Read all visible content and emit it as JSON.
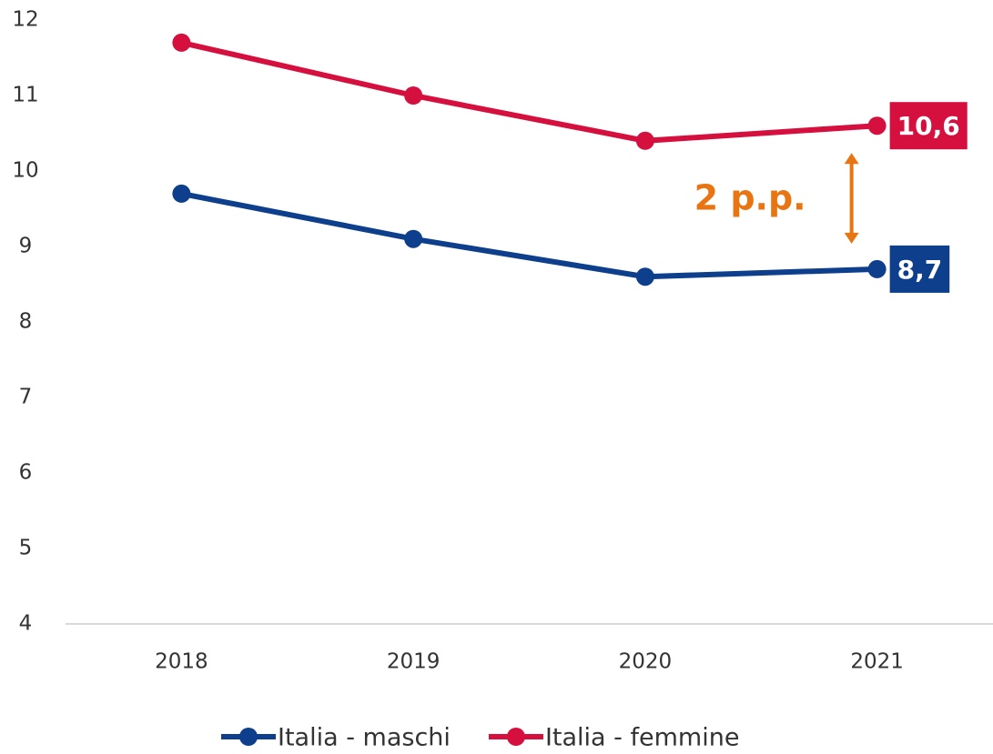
{
  "chart_data": {
    "type": "line",
    "categories": [
      "2018",
      "2019",
      "2020",
      "2021"
    ],
    "series": [
      {
        "name": "Italia - maschi",
        "color": "#0d3f8c",
        "values": [
          9.7,
          9.1,
          8.6,
          8.7
        ],
        "value_labels": [
          null,
          null,
          null,
          "8,7"
        ]
      },
      {
        "name": "Italia - femmine",
        "color": "#d5103f",
        "values": [
          11.7,
          11.0,
          10.4,
          10.6
        ],
        "value_labels": [
          null,
          null,
          null,
          "10,6"
        ]
      }
    ],
    "annotation": {
      "text": "2 p.p.",
      "color": "#e87511"
    },
    "ylim": [
      4,
      12
    ],
    "yticks": [
      4,
      5,
      6,
      7,
      8,
      9,
      10,
      11,
      12
    ],
    "grid": false
  }
}
